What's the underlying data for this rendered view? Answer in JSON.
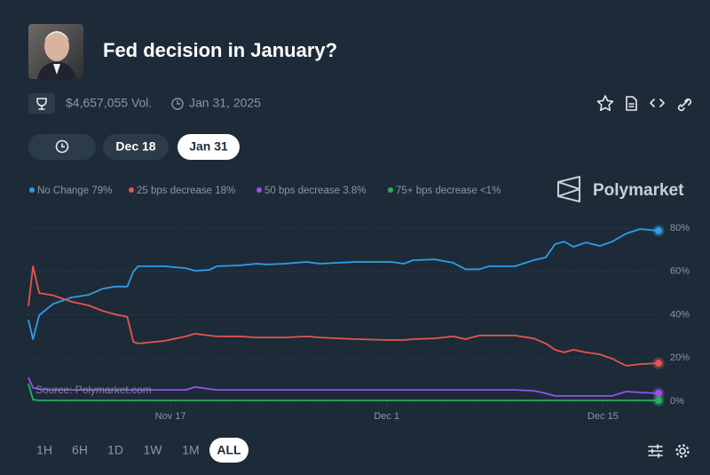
{
  "header": {
    "title": "Fed decision in January?",
    "volume": "$4,657,055 Vol.",
    "date": "Jan 31, 2025"
  },
  "date_tabs": [
    "Dec 18",
    "Jan 31"
  ],
  "brand": "Polymarket",
  "source": "Source: Polymarket.com",
  "range_tabs": [
    "1H",
    "6H",
    "1D",
    "1W",
    "1M",
    "ALL"
  ],
  "chart_data": {
    "type": "line",
    "x": [
      7.8,
      8.1,
      8.5,
      9.4,
      10.6,
      11.7,
      12.6,
      13.4,
      14.2,
      14.6,
      14.9,
      16.6,
      18.0,
      18.6,
      19.5,
      20.0,
      21.5,
      22.6,
      23.2,
      24.4,
      25.8,
      26.7,
      27.8,
      29.0,
      31.3,
      32.1,
      32.7,
      34.1,
      35.3,
      36.1,
      37.0,
      37.6,
      39.3,
      40.5,
      41.3,
      41.9,
      42.5,
      43.1,
      43.9,
      44.8,
      45.6,
      46.5,
      47.4,
      48.6
    ],
    "xlim": [
      7.8,
      48.6
    ],
    "xticks": [
      {
        "value": 17,
        "label": "Nov 17"
      },
      {
        "value": 31,
        "label": "Dec 1"
      },
      {
        "value": 45,
        "label": "Dec 15"
      }
    ],
    "ylim": [
      0,
      80
    ],
    "yticks": [
      {
        "value": 0,
        "label": "0%"
      },
      {
        "value": 20,
        "label": "20%"
      },
      {
        "value": 40,
        "label": "40%"
      },
      {
        "value": 60,
        "label": "60%"
      },
      {
        "value": 80,
        "label": "80%"
      }
    ],
    "grid": true,
    "series": [
      {
        "name": "No Change",
        "legend_label": "79%",
        "color": "#2e9ee6",
        "values": [
          37.7,
          28.7,
          39.8,
          45,
          48,
          49.2,
          52,
          53,
          53,
          60,
          62.4,
          62.4,
          61.5,
          60.3,
          60.7,
          62.4,
          62.8,
          63.6,
          63.2,
          63.6,
          64.4,
          63.6,
          64,
          64.4,
          64.4,
          63.6,
          65.2,
          65.6,
          64,
          61,
          61,
          62.4,
          62.4,
          65.2,
          66.5,
          72.6,
          73.8,
          71.4,
          73.4,
          71.8,
          73.8,
          77.5,
          79.6,
          78.8
        ]
      },
      {
        "name": "25 bps decrease",
        "legend_label": "18%",
        "color": "#e5564e",
        "values": [
          44,
          62.4,
          50,
          49,
          46,
          44.3,
          41.8,
          40.2,
          39,
          27.5,
          26.7,
          27.9,
          30,
          31.2,
          30.4,
          30,
          30,
          29.5,
          29.5,
          29.5,
          30,
          29.5,
          29.1,
          28.7,
          28.3,
          28.3,
          28.7,
          29.1,
          30,
          28.7,
          30.4,
          30.4,
          30.4,
          29.1,
          26.7,
          23.8,
          22.6,
          23.8,
          22.6,
          21.7,
          19.7,
          16.4,
          17.2,
          17.6
        ]
      },
      {
        "name": "50 bps decrease",
        "legend_label": "3.8%",
        "color": "#9b4ef0",
        "values": [
          11,
          6.2,
          5.7,
          5.3,
          5.3,
          5.3,
          5.3,
          5.3,
          5.3,
          5.3,
          5.3,
          5.3,
          5.3,
          6.6,
          5.7,
          5.3,
          5.3,
          5.3,
          5.3,
          5.3,
          5.3,
          5.3,
          5.3,
          5.3,
          5.3,
          5.3,
          5.3,
          5.3,
          5.3,
          5.3,
          5.3,
          5.3,
          5.3,
          4.9,
          3.7,
          2.5,
          2.5,
          2.5,
          2.5,
          2.5,
          2.5,
          4.5,
          4.1,
          3.7
        ]
      },
      {
        "name": "75+ bps decrease",
        "legend_label": "<1%",
        "color": "#27ae60",
        "values": [
          8.2,
          0.8,
          0.4,
          0.4,
          0.4,
          0.4,
          0.4,
          0.4,
          0.4,
          0.4,
          0.4,
          0.4,
          0.4,
          0.4,
          0.4,
          0.4,
          0.4,
          0.4,
          0.4,
          0.4,
          0.4,
          0.4,
          0.4,
          0.4,
          0.4,
          0.4,
          0.4,
          0.4,
          0.4,
          0.4,
          0.4,
          0.4,
          0.4,
          0.4,
          0.4,
          0.4,
          0.4,
          0.4,
          0.4,
          0.4,
          0.4,
          0.4,
          0.4,
          0.4
        ]
      }
    ]
  }
}
